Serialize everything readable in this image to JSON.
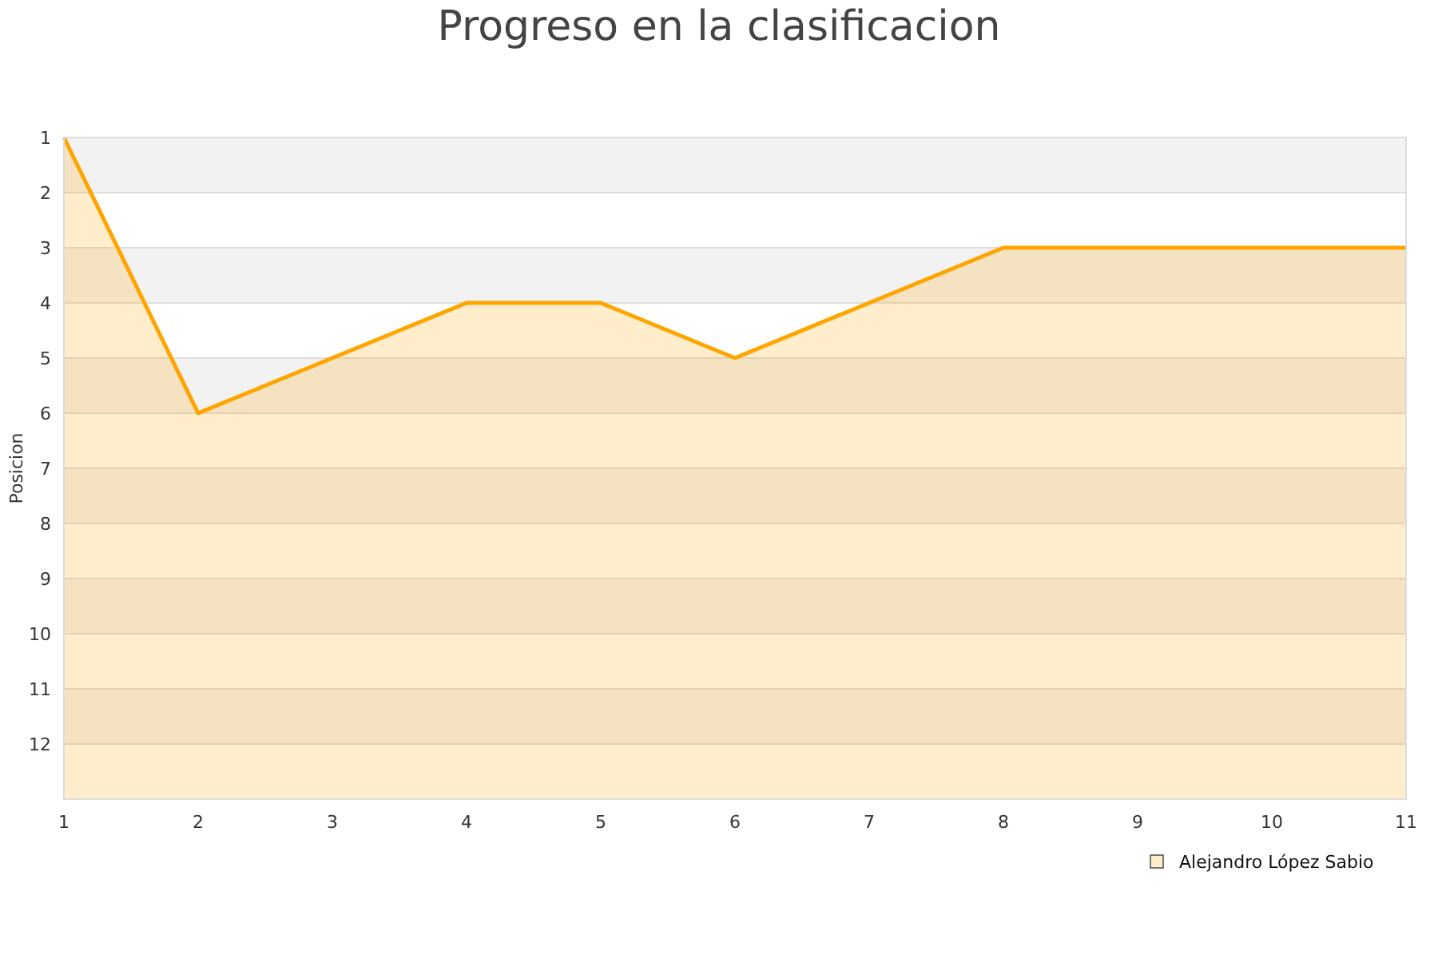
{
  "chart_data": {
    "type": "line",
    "title": "Progreso en la clasificacion",
    "ylabel": "Posicion",
    "x": [
      1,
      2,
      3,
      4,
      5,
      6,
      7,
      8,
      9,
      10,
      11
    ],
    "xlim": [
      1,
      11
    ],
    "xticks": [
      1,
      2,
      3,
      4,
      5,
      6,
      7,
      8,
      9,
      10,
      11
    ],
    "ylim": [
      13,
      1
    ],
    "yticks": [
      1,
      2,
      3,
      4,
      5,
      6,
      7,
      8,
      9,
      10,
      11,
      12
    ],
    "series": [
      {
        "name": "Alejandro López Sabio",
        "color": "#ffa500",
        "values": [
          1,
          6,
          5,
          4,
          4,
          5,
          4,
          3,
          3,
          3,
          3
        ],
        "upper": [
          1,
          6,
          5,
          4,
          4,
          5,
          4,
          3,
          3,
          3,
          3
        ],
        "lower": [
          13,
          13,
          13,
          13,
          13,
          13,
          13,
          13,
          13,
          13,
          13
        ]
      }
    ],
    "grid": true,
    "legend": "bottom right",
    "marker": "none",
    "line_style": "solid"
  }
}
